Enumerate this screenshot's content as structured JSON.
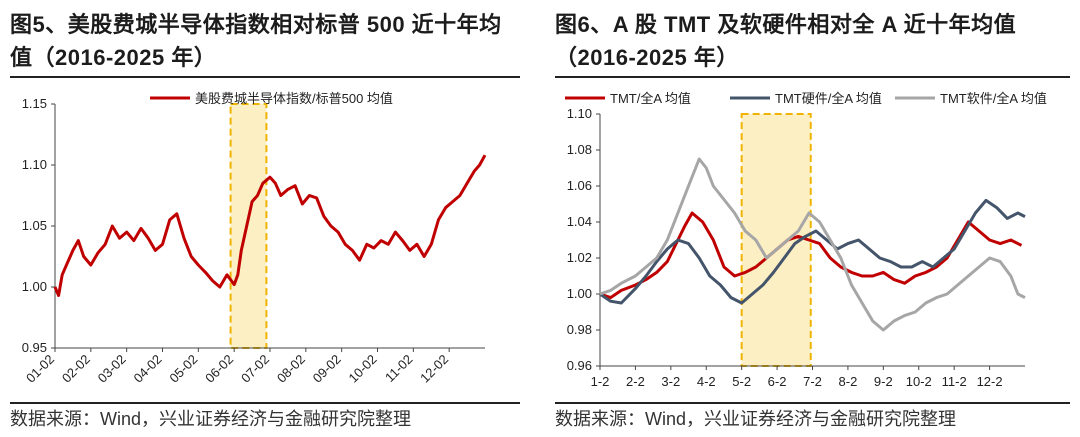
{
  "charts": [
    {
      "title": "图5、美股费城半导体指数相对标普 500 近十年均值（2016-2025 年）",
      "source": "数据来源：Wind，兴业证券经济与金融研究院整理",
      "chart_data": {
        "type": "line",
        "title": "图5、美股费城半导体指数相对标普 500 近十年均值（2016-2025 年）",
        "xlabel": "",
        "ylabel": "",
        "ylim": [
          0.95,
          1.15
        ],
        "yticks": [
          "0.95",
          "1.00",
          "1.05",
          "1.10",
          "1.15"
        ],
        "categories": [
          "01-02",
          "02-02",
          "03-02",
          "04-02",
          "05-02",
          "06-02",
          "07-02",
          "08-02",
          "09-02",
          "10-02",
          "11-02",
          "12-02"
        ],
        "x_max": 12,
        "shade": {
          "x": [
            4.9,
            5.9
          ]
        },
        "series": [
          {
            "name": "美股费城半导体指数/标普500 均值",
            "color": "#c00000",
            "x": [
              0,
              0.1,
              0.2,
              0.35,
              0.5,
              0.65,
              0.8,
              1.0,
              1.2,
              1.4,
              1.6,
              1.8,
              2.0,
              2.2,
              2.4,
              2.6,
              2.8,
              3.0,
              3.2,
              3.4,
              3.6,
              3.8,
              4.0,
              4.2,
              4.4,
              4.6,
              4.8,
              5.0,
              5.1,
              5.2,
              5.35,
              5.5,
              5.65,
              5.8,
              6.0,
              6.15,
              6.3,
              6.5,
              6.7,
              6.9,
              7.1,
              7.3,
              7.5,
              7.7,
              7.9,
              8.1,
              8.3,
              8.5,
              8.7,
              8.9,
              9.1,
              9.3,
              9.5,
              9.7,
              9.9,
              10.1,
              10.3,
              10.5,
              10.7,
              10.9,
              11.1,
              11.3,
              11.5,
              11.7,
              11.85,
              12.0
            ],
            "values": [
              1.0,
              0.993,
              1.01,
              1.02,
              1.03,
              1.038,
              1.025,
              1.018,
              1.028,
              1.035,
              1.05,
              1.04,
              1.045,
              1.038,
              1.048,
              1.04,
              1.03,
              1.035,
              1.055,
              1.06,
              1.04,
              1.025,
              1.018,
              1.012,
              1.005,
              1.0,
              1.01,
              1.002,
              1.01,
              1.03,
              1.05,
              1.07,
              1.075,
              1.085,
              1.09,
              1.085,
              1.075,
              1.08,
              1.083,
              1.068,
              1.075,
              1.073,
              1.058,
              1.05,
              1.045,
              1.035,
              1.03,
              1.022,
              1.035,
              1.032,
              1.038,
              1.035,
              1.045,
              1.038,
              1.03,
              1.035,
              1.025,
              1.035,
              1.055,
              1.065,
              1.07,
              1.075,
              1.085,
              1.095,
              1.1,
              1.108
            ]
          }
        ]
      }
    },
    {
      "title": "图6、A 股 TMT 及软硬件相对全 A 近十年均值（2016-2025 年）",
      "source": "数据来源：Wind，兴业证券经济与金融研究院整理",
      "chart_data": {
        "type": "line",
        "title": "图6、A 股 TMT 及软硬件相对全 A 近十年均值（2016-2025 年）",
        "xlabel": "",
        "ylabel": "",
        "ylim": [
          0.96,
          1.1
        ],
        "yticks": [
          "0.96",
          "0.98",
          "1.00",
          "1.02",
          "1.04",
          "1.06",
          "1.08",
          "1.10"
        ],
        "categories": [
          "1-2",
          "2-2",
          "3-2",
          "4-2",
          "5-2",
          "6-2",
          "7-2",
          "8-2",
          "9-2",
          "10-2",
          "11-2",
          "12-2"
        ],
        "x_max": 12,
        "shade": {
          "x": [
            4.0,
            5.95
          ]
        },
        "series": [
          {
            "name": "TMT/全A 均值",
            "color": "#c00000",
            "x": [
              0,
              0.3,
              0.6,
              1.0,
              1.3,
              1.6,
              1.9,
              2.2,
              2.4,
              2.6,
              2.9,
              3.2,
              3.5,
              3.8,
              4.1,
              4.4,
              4.7,
              5.0,
              5.3,
              5.6,
              5.9,
              6.2,
              6.5,
              6.8,
              7.1,
              7.4,
              7.7,
              8.0,
              8.3,
              8.6,
              8.9,
              9.2,
              9.5,
              9.8,
              10.1,
              10.4,
              10.7,
              11.0,
              11.3,
              11.6,
              11.9
            ],
            "values": [
              1.0,
              0.998,
              1.002,
              1.005,
              1.008,
              1.012,
              1.018,
              1.03,
              1.038,
              1.045,
              1.04,
              1.03,
              1.015,
              1.01,
              1.012,
              1.015,
              1.02,
              1.025,
              1.03,
              1.032,
              1.03,
              1.028,
              1.02,
              1.015,
              1.012,
              1.01,
              1.01,
              1.012,
              1.008,
              1.006,
              1.01,
              1.012,
              1.015,
              1.02,
              1.03,
              1.04,
              1.035,
              1.03,
              1.028,
              1.03,
              1.027
            ]
          },
          {
            "name": "TMT硬件/全A 均值",
            "color": "#44546a",
            "x": [
              0,
              0.3,
              0.6,
              1.0,
              1.3,
              1.6,
              1.9,
              2.2,
              2.5,
              2.8,
              3.1,
              3.4,
              3.7,
              4.0,
              4.3,
              4.6,
              4.9,
              5.2,
              5.5,
              5.8,
              6.1,
              6.4,
              6.7,
              7.0,
              7.3,
              7.6,
              7.9,
              8.2,
              8.5,
              8.8,
              9.1,
              9.4,
              9.7,
              10.0,
              10.3,
              10.6,
              10.9,
              11.2,
              11.5,
              11.8,
              12.0
            ],
            "values": [
              1.0,
              0.996,
              0.995,
              1.003,
              1.01,
              1.018,
              1.025,
              1.03,
              1.028,
              1.02,
              1.01,
              1.005,
              0.998,
              0.995,
              1.0,
              1.005,
              1.012,
              1.02,
              1.028,
              1.032,
              1.035,
              1.03,
              1.025,
              1.028,
              1.03,
              1.025,
              1.02,
              1.018,
              1.015,
              1.015,
              1.018,
              1.015,
              1.02,
              1.025,
              1.035,
              1.045,
              1.052,
              1.048,
              1.042,
              1.045,
              1.043
            ]
          },
          {
            "name": "TMT软件/全A 均值",
            "color": "#a6a6a6",
            "x": [
              0,
              0.3,
              0.6,
              1.0,
              1.3,
              1.6,
              1.9,
              2.2,
              2.5,
              2.8,
              3.0,
              3.2,
              3.4,
              3.6,
              3.8,
              4.1,
              4.4,
              4.7,
              5.0,
              5.3,
              5.6,
              5.9,
              6.2,
              6.5,
              6.8,
              7.1,
              7.4,
              7.7,
              8.0,
              8.3,
              8.6,
              8.9,
              9.2,
              9.5,
              9.8,
              10.1,
              10.4,
              10.7,
              11.0,
              11.3,
              11.6,
              11.8,
              12.0
            ],
            "values": [
              1.0,
              1.002,
              1.006,
              1.01,
              1.015,
              1.02,
              1.03,
              1.045,
              1.06,
              1.075,
              1.07,
              1.06,
              1.055,
              1.05,
              1.045,
              1.035,
              1.03,
              1.02,
              1.025,
              1.03,
              1.035,
              1.045,
              1.04,
              1.03,
              1.02,
              1.005,
              0.995,
              0.985,
              0.98,
              0.985,
              0.988,
              0.99,
              0.995,
              0.998,
              1.0,
              1.005,
              1.01,
              1.015,
              1.02,
              1.018,
              1.01,
              1.0,
              0.998
            ]
          }
        ]
      }
    }
  ]
}
